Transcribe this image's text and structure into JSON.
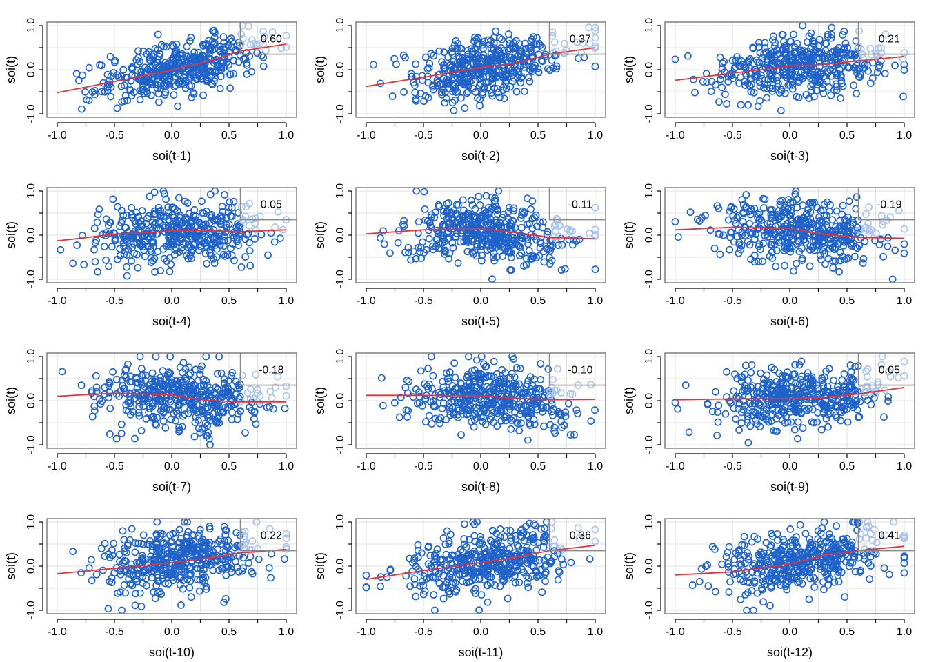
{
  "chart_data": {
    "type": "scatter",
    "layout": "4x3 lag-plot grid",
    "y_label": "soi(t)",
    "x_ticks": [
      "-1.0",
      "-0.5",
      "0.0",
      "0.5",
      "1.0"
    ],
    "y_ticks": [
      "-1.0",
      "0.0",
      "1.0"
    ],
    "xlim": [
      -1.0,
      1.0
    ],
    "ylim": [
      -1.0,
      1.0
    ],
    "grid": true,
    "colors": {
      "points": "#1f63c9",
      "points_faded": "#a9c3ea",
      "smoother": "#e8313a",
      "frame": "#888888",
      "grid": "#e0e0e0"
    },
    "panels": [
      {
        "xlabel": "soi(t-1)",
        "corr_label": "0.60",
        "corr": 0.6,
        "smoother": [
          [
            -1.0,
            -0.52
          ],
          [
            -0.5,
            -0.27
          ],
          [
            0.0,
            -0.01
          ],
          [
            0.3,
            0.18
          ],
          [
            0.6,
            0.42
          ],
          [
            1.0,
            0.58
          ]
        ]
      },
      {
        "xlabel": "soi(t-2)",
        "corr_label": "0.37",
        "corr": 0.37,
        "smoother": [
          [
            -1.0,
            -0.38
          ],
          [
            -0.5,
            -0.17
          ],
          [
            0.0,
            0.05
          ],
          [
            0.3,
            0.15
          ],
          [
            0.6,
            0.35
          ],
          [
            1.0,
            0.5
          ]
        ]
      },
      {
        "xlabel": "soi(t-3)",
        "corr_label": "0.21",
        "corr": 0.21,
        "smoother": [
          [
            -1.0,
            -0.24
          ],
          [
            -0.5,
            -0.08
          ],
          [
            0.0,
            0.08
          ],
          [
            0.3,
            0.12
          ],
          [
            0.6,
            0.2
          ],
          [
            1.0,
            0.3
          ]
        ]
      },
      {
        "xlabel": "soi(t-4)",
        "corr_label": "0.05",
        "corr": 0.05,
        "smoother": [
          [
            -1.0,
            -0.13
          ],
          [
            -0.5,
            0.02
          ],
          [
            0.0,
            0.1
          ],
          [
            0.3,
            0.1
          ],
          [
            0.6,
            0.08
          ],
          [
            1.0,
            0.12
          ]
        ]
      },
      {
        "xlabel": "soi(t-5)",
        "corr_label": "-0.11",
        "corr": -0.11,
        "smoother": [
          [
            -1.0,
            0.03
          ],
          [
            -0.5,
            0.12
          ],
          [
            0.0,
            0.15
          ],
          [
            0.3,
            0.06
          ],
          [
            0.6,
            -0.05
          ],
          [
            1.0,
            -0.08
          ]
        ]
      },
      {
        "xlabel": "soi(t-6)",
        "corr_label": "-0.19",
        "corr": -0.19,
        "smoother": [
          [
            -1.0,
            0.12
          ],
          [
            -0.5,
            0.18
          ],
          [
            0.0,
            0.15
          ],
          [
            0.3,
            0.02
          ],
          [
            0.6,
            -0.05
          ],
          [
            1.0,
            -0.07
          ]
        ]
      },
      {
        "xlabel": "soi(t-7)",
        "corr_label": "-0.18",
        "corr": -0.18,
        "smoother": [
          [
            -1.0,
            0.1
          ],
          [
            -0.5,
            0.17
          ],
          [
            0.0,
            0.13
          ],
          [
            0.3,
            0.01
          ],
          [
            0.6,
            -0.03
          ],
          [
            1.0,
            -0.03
          ]
        ]
      },
      {
        "xlabel": "soi(t-8)",
        "corr_label": "-0.10",
        "corr": -0.1,
        "smoother": [
          [
            -1.0,
            0.12
          ],
          [
            -0.5,
            0.12
          ],
          [
            0.0,
            0.11
          ],
          [
            0.3,
            0.06
          ],
          [
            0.6,
            0.02
          ],
          [
            1.0,
            0.03
          ]
        ]
      },
      {
        "xlabel": "soi(t-9)",
        "corr_label": "0.05",
        "corr": 0.05,
        "smoother": [
          [
            -1.0,
            0.02
          ],
          [
            -0.5,
            0.04
          ],
          [
            0.0,
            0.05
          ],
          [
            0.3,
            0.08
          ],
          [
            0.6,
            0.15
          ],
          [
            1.0,
            0.3
          ]
        ]
      },
      {
        "xlabel": "soi(t-10)",
        "corr_label": "0.22",
        "corr": 0.22,
        "smoother": [
          [
            -1.0,
            -0.17
          ],
          [
            -0.5,
            -0.05
          ],
          [
            0.0,
            0.08
          ],
          [
            0.3,
            0.18
          ],
          [
            0.6,
            0.3
          ],
          [
            1.0,
            0.38
          ]
        ]
      },
      {
        "xlabel": "soi(t-11)",
        "corr_label": "0.36",
        "corr": 0.36,
        "smoother": [
          [
            -1.0,
            -0.3
          ],
          [
            -0.5,
            -0.1
          ],
          [
            0.0,
            0.08
          ],
          [
            0.3,
            0.2
          ],
          [
            0.6,
            0.35
          ],
          [
            1.0,
            0.47
          ]
        ]
      },
      {
        "xlabel": "soi(t-12)",
        "corr_label": "0.41",
        "corr": 0.41,
        "smoother": [
          [
            -1.0,
            -0.2
          ],
          [
            -0.5,
            -0.13
          ],
          [
            0.0,
            0.05
          ],
          [
            0.3,
            0.25
          ],
          [
            0.6,
            0.35
          ],
          [
            1.0,
            0.45
          ]
        ]
      }
    ]
  }
}
